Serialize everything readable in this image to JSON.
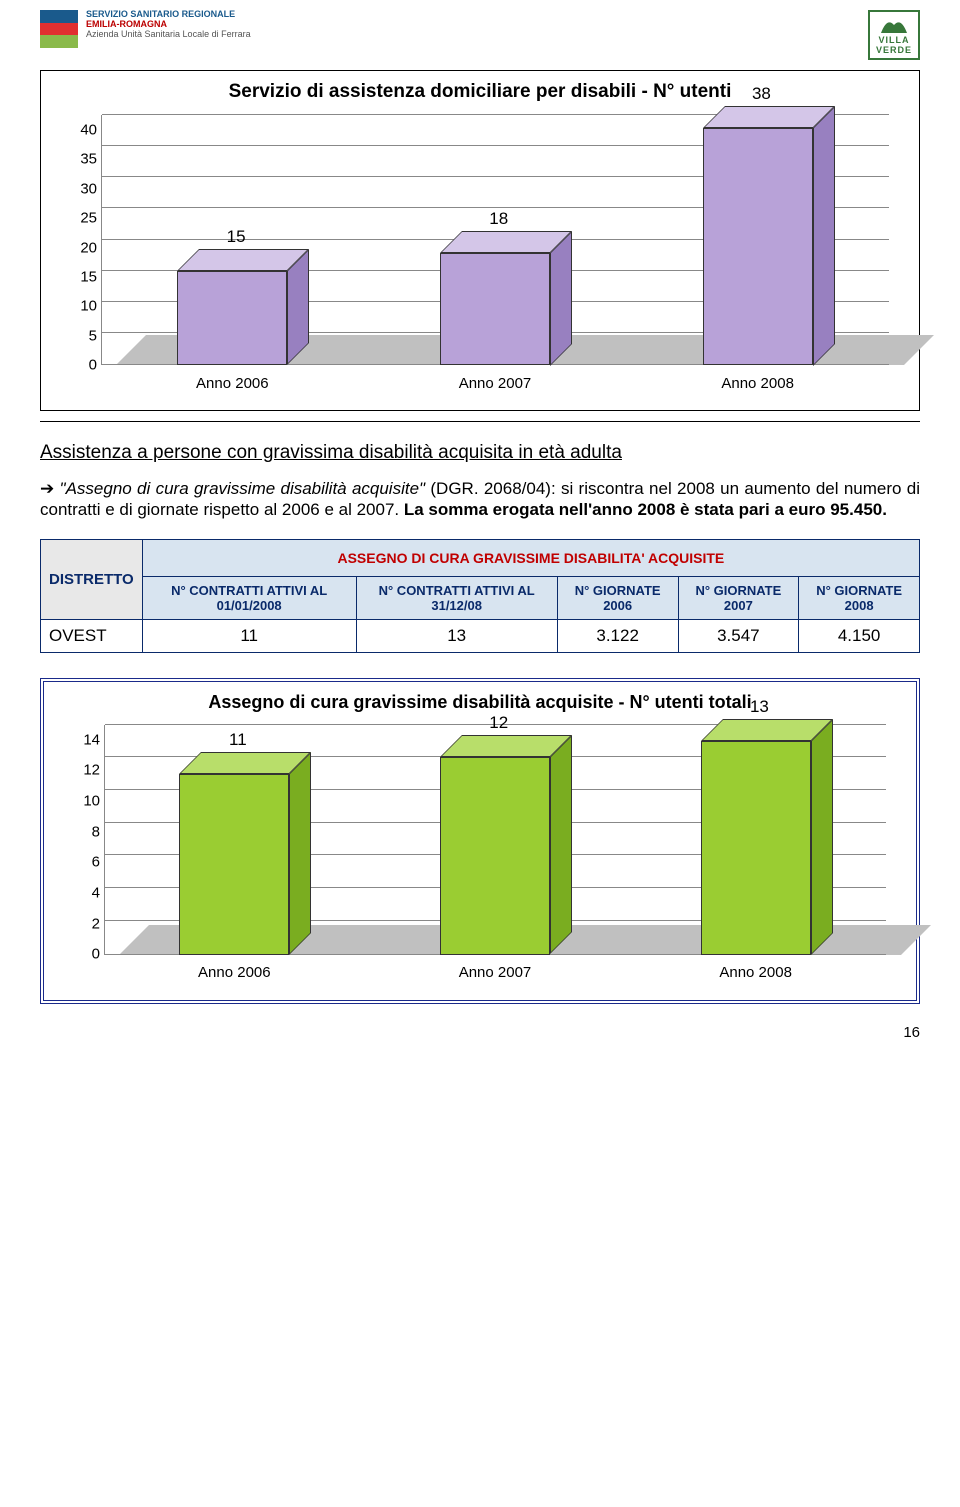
{
  "header": {
    "ssr_line1": "SERVIZIO SANITARIO REGIONALE",
    "ssr_line2": "EMILIA-ROMAGNA",
    "ssr_line3": "Azienda Unità Sanitaria Locale di Ferrara",
    "villa_line1": "VILLA",
    "villa_line2": "VERDE"
  },
  "chart1": {
    "title": "Servizio di assistenza domiciliare per disabili - N° utenti",
    "y_ticks": [
      "0",
      "5",
      "10",
      "15",
      "20",
      "25",
      "30",
      "35",
      "40"
    ],
    "y_max": 40,
    "bar_color_front": "#b8a2d8",
    "bar_color_top": "#d4c6e8",
    "bar_color_side": "#9880c0",
    "floor_color": "#c0c0c0",
    "bars": [
      {
        "label": "Anno 2006",
        "value": 15,
        "value_label": "15"
      },
      {
        "label": "Anno 2007",
        "value": 18,
        "value_label": "18"
      },
      {
        "label": "Anno 2008",
        "value": 38,
        "value_label": "38"
      }
    ]
  },
  "section_heading": "Assistenza a persone con gravissima disabilità acquisita in età adulta",
  "body_quote": "\"Assegno di cura gravissime disabilità acquisite\"",
  "body_rest": " (DGR. 2068/04): si riscontra nel 2008 un aumento del numero di contratti e di giornate rispetto al 2006 e al 2007. ",
  "body_bold": "La somma erogata nell'anno 2008  è stata pari a euro 95.450.",
  "table": {
    "distretto_label": "DISTRETTO",
    "super_header": "ASSEGNO DI CURA GRAVISSIME DISABILITA' ACQUISITE",
    "cols": [
      "N° CONTRATTI ATTIVI AL 01/01/2008",
      "N° CONTRATTI ATTIVI AL 31/12/08",
      "N° GIORNATE 2006",
      "N° GIORNATE 2007",
      "N° GIORNATE 2008"
    ],
    "row_label": "OVEST",
    "row_values": [
      "11",
      "13",
      "3.122",
      "3.547",
      "4.150"
    ]
  },
  "chart2": {
    "title": "Assegno di cura gravissime disabilità acquisite - N° utenti totali",
    "y_ticks": [
      "0",
      "2",
      "4",
      "6",
      "8",
      "10",
      "12",
      "14"
    ],
    "y_max": 14,
    "bar_color_front": "#9acd32",
    "bar_color_top": "#b8de6a",
    "bar_color_side": "#7aad20",
    "bars": [
      {
        "label": "Anno 2006",
        "value": 11,
        "value_label": "11"
      },
      {
        "label": "Anno 2007",
        "value": 12,
        "value_label": "12"
      },
      {
        "label": "Anno 2008",
        "value": 13,
        "value_label": "13"
      }
    ]
  },
  "page_number": "16"
}
